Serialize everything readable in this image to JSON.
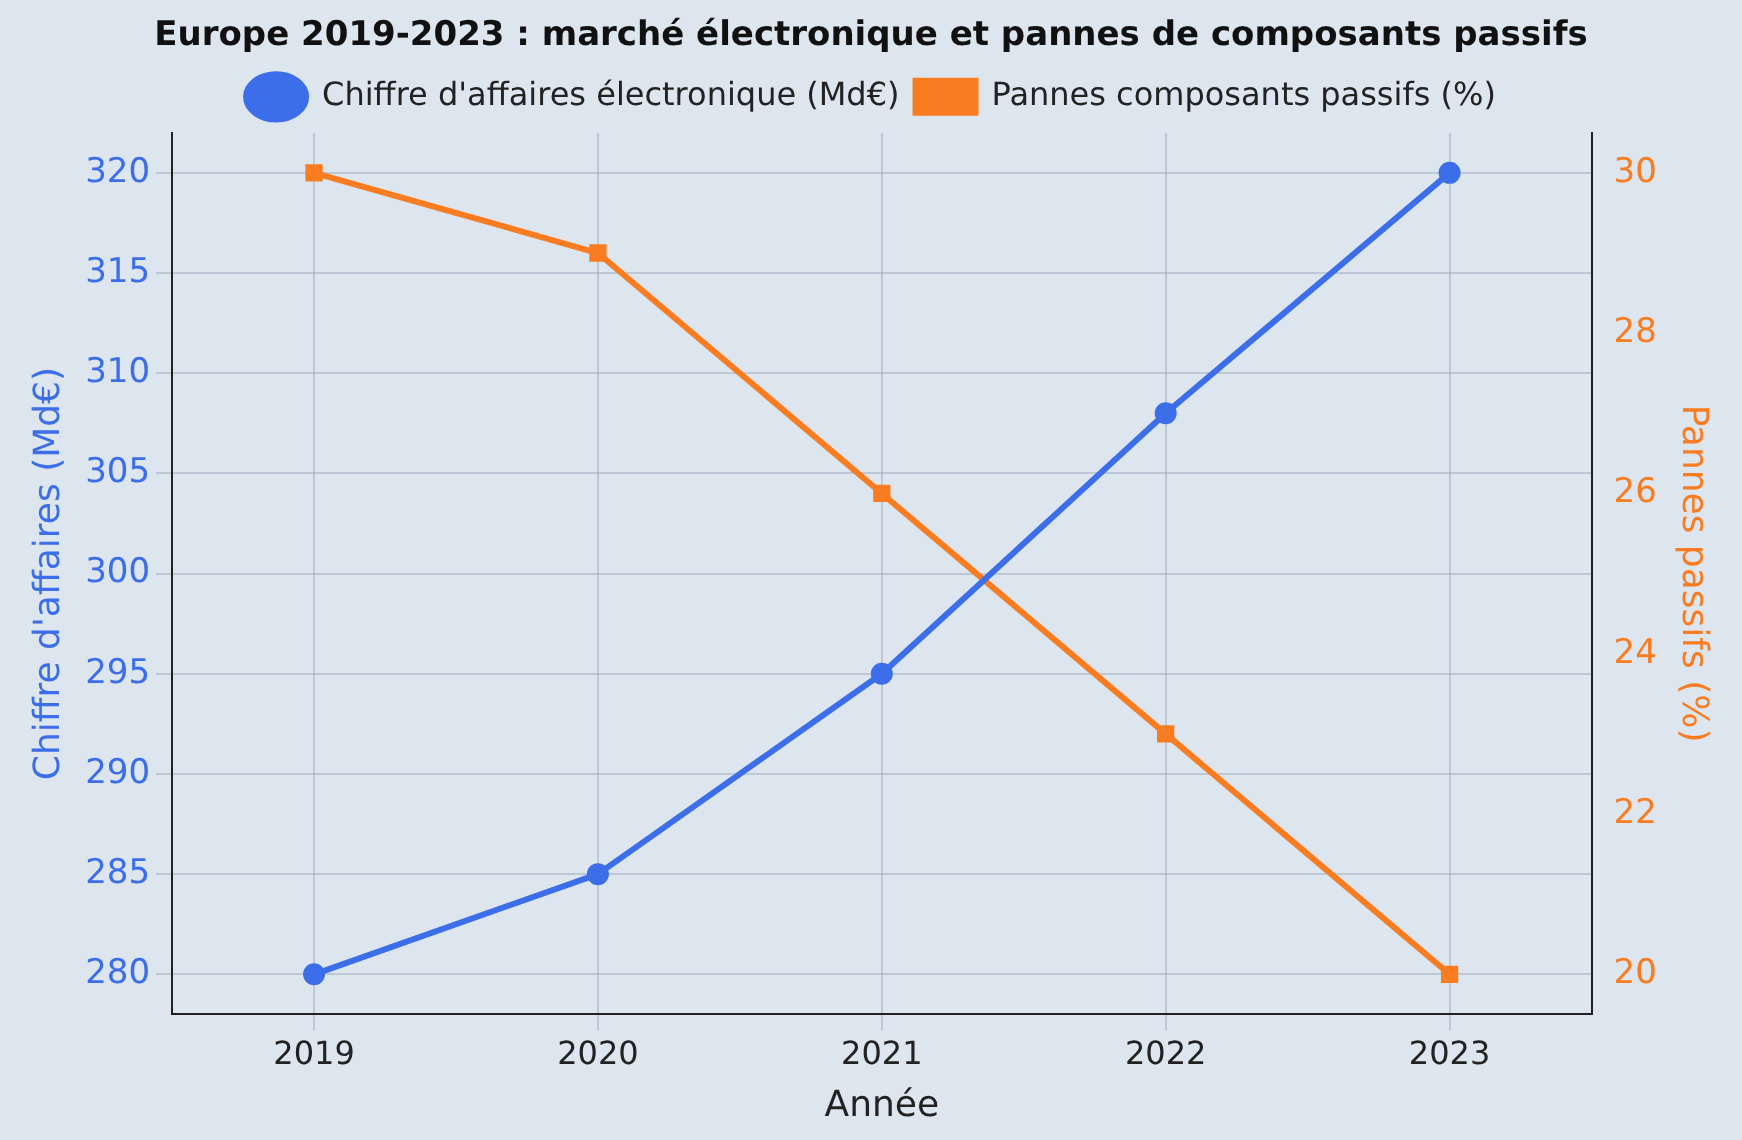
{
  "chart_data": {
    "type": "line",
    "title": "Europe 2019-2023 : marché électronique et pannes de composants passifs",
    "xlabel": "Année",
    "ylabel": "Chiffre d'affaires (Md€)",
    "y2label": "Pannes passifs (%)",
    "categories": [
      "2019",
      "2020",
      "2021",
      "2022",
      "2023"
    ],
    "series": [
      {
        "name": "Chiffre d'affaires électronique (Md€)",
        "color": "#3b6ee8",
        "values": [
          280,
          285,
          295,
          308,
          320
        ],
        "marker": "circle"
      },
      {
        "name": "Pannes composants passifs (%)",
        "color": "#f97c21",
        "values": [
          30,
          29,
          26,
          23,
          20
        ],
        "axis": "y2",
        "marker": "square"
      }
    ],
    "ylim": [
      278,
      322
    ],
    "yticks": [
      280,
      285,
      290,
      295,
      300,
      305,
      310,
      315,
      320
    ],
    "y2lim": [
      19.5,
      30.5
    ],
    "y2ticks": [
      20,
      22,
      24,
      26,
      28,
      30
    ],
    "grid": true,
    "legend": "top",
    "line_style": "solid"
  }
}
